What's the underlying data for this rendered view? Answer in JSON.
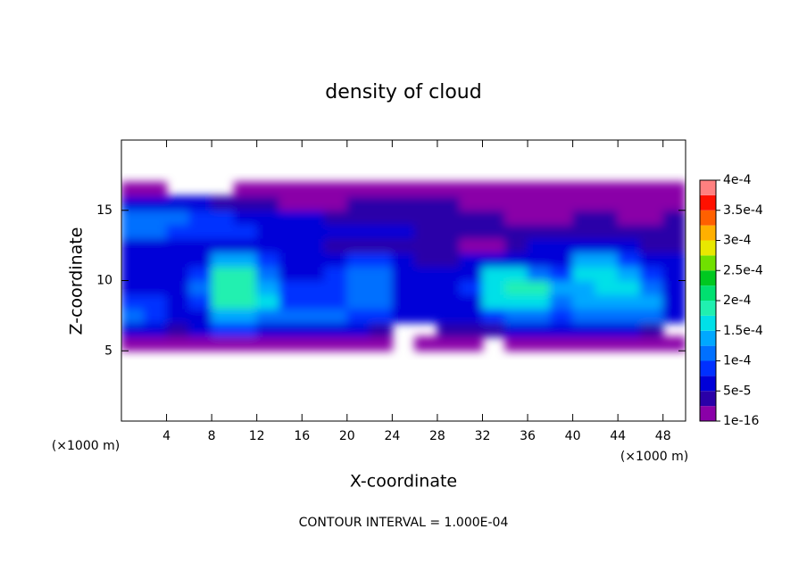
{
  "chart_data": {
    "type": "contourf",
    "title": "density of cloud",
    "xlabel": "X-coordinate",
    "ylabel": "Z-coordinate",
    "xunit": "(×1000 m)",
    "yunit": "(×1000 m)",
    "note": "CONTOUR INTERVAL = 1.000E-04",
    "xlim": [
      0,
      50
    ],
    "ylim": [
      0,
      20
    ],
    "xticks": [
      4,
      8,
      12,
      16,
      20,
      24,
      28,
      32,
      36,
      40,
      44,
      48
    ],
    "yticks": [
      5,
      10,
      15
    ],
    "x": [
      1,
      3,
      5,
      7,
      9,
      11,
      13,
      15,
      17,
      19,
      21,
      23,
      25,
      27,
      29,
      31,
      33,
      35,
      37,
      39,
      41,
      43,
      45,
      47,
      49
    ],
    "z": [
      5.5,
      6.5,
      7.5,
      8.5,
      9.5,
      10.5,
      11.5,
      12.5,
      13.5,
      14.5,
      15.5,
      16.5
    ],
    "values": [
      [
        2e-05,
        2e-05,
        2e-05,
        2e-05,
        2e-05,
        2e-05,
        2e-05,
        2e-05,
        2e-05,
        2e-05,
        1e-05,
        1e-05,
        null,
        1e-05,
        2e-05,
        1e-05,
        null,
        1e-05,
        2e-05,
        2e-05,
        2e-05,
        2e-05,
        2e-05,
        2e-05,
        1e-05
      ],
      [
        6e-05,
        6e-05,
        4e-05,
        6e-05,
        8e-05,
        8e-05,
        7e-05,
        7e-05,
        7e-05,
        7e-05,
        6e-05,
        4e-05,
        null,
        null,
        3e-05,
        3e-05,
        3e-05,
        5e-05,
        5e-05,
        6e-05,
        6e-05,
        6e-05,
        6e-05,
        4e-05,
        null
      ],
      [
        0.0001,
        9e-05,
        6e-05,
        7e-05,
        0.00013,
        0.00013,
        0.00011,
        0.00012,
        0.00012,
        0.00012,
        8e-05,
        8e-05,
        5e-05,
        5e-05,
        5e-05,
        6e-05,
        9e-05,
        0.00011,
        0.00011,
        8e-05,
        0.00012,
        0.00012,
        0.00012,
        0.00012,
        6e-05
      ],
      [
        8e-05,
        8e-05,
        7e-05,
        9e-05,
        0.00018,
        0.00018,
        0.00015,
        9e-05,
        9e-05,
        9e-05,
        0.0001,
        0.0001,
        6e-05,
        6e-05,
        5e-05,
        7e-05,
        0.00015,
        0.00017,
        0.00017,
        0.00011,
        0.00013,
        0.00013,
        0.00013,
        0.00013,
        7e-05
      ],
      [
        6e-05,
        6e-05,
        6e-05,
        0.00011,
        0.00019,
        0.00019,
        0.00014,
        8e-05,
        8e-05,
        8e-05,
        0.0001,
        0.0001,
        6e-05,
        6e-05,
        5e-05,
        8e-05,
        0.00016,
        0.00018,
        0.00018,
        0.00013,
        0.00013,
        0.00015,
        0.00015,
        0.00012,
        7e-05
      ],
      [
        5e-05,
        5e-05,
        5e-05,
        9e-05,
        0.00018,
        0.00018,
        0.00012,
        7e-05,
        7e-05,
        8e-05,
        0.0001,
        0.0001,
        6e-05,
        5e-05,
        5e-05,
        7e-05,
        0.00015,
        0.00015,
        0.00012,
        9e-05,
        0.00016,
        0.00016,
        0.00014,
        9e-05,
        6e-05
      ],
      [
        6e-05,
        6e-05,
        6e-05,
        7e-05,
        0.00013,
        0.00013,
        8e-05,
        6e-05,
        6e-05,
        7e-05,
        8e-05,
        8e-05,
        5e-05,
        4e-05,
        4e-05,
        5e-05,
        6e-05,
        6e-05,
        6e-05,
        7e-05,
        0.00014,
        0.00014,
        9e-05,
        6e-05,
        5e-05
      ],
      [
        7e-05,
        7e-05,
        7e-05,
        6e-05,
        6e-05,
        6e-05,
        5e-05,
        5e-05,
        5e-05,
        4e-05,
        3e-05,
        3e-05,
        3e-05,
        3e-05,
        3e-05,
        2e-05,
        2e-05,
        4e-05,
        5e-05,
        5e-05,
        5e-05,
        5e-05,
        5e-05,
        4e-05,
        4e-05
      ],
      [
        0.0001,
        0.0001,
        9e-05,
        9e-05,
        8e-05,
        8e-05,
        7e-05,
        7e-05,
        6e-05,
        5e-05,
        5e-05,
        5e-05,
        5e-05,
        4e-05,
        3e-05,
        3e-05,
        3e-05,
        3e-05,
        3e-05,
        3e-05,
        4e-05,
        4e-05,
        4e-05,
        3e-05,
        3e-05
      ],
      [
        0.0001,
        0.00011,
        0.0001,
        9e-05,
        8e-05,
        6e-05,
        6e-05,
        6e-05,
        5e-05,
        4e-05,
        4e-05,
        4e-05,
        4e-05,
        4e-05,
        3e-05,
        3e-05,
        3e-05,
        2e-05,
        2e-05,
        2e-05,
        3e-05,
        3e-05,
        2e-05,
        2e-05,
        3e-05
      ],
      [
        5e-05,
        5e-05,
        5e-05,
        5e-05,
        4e-05,
        3e-05,
        3e-05,
        2e-05,
        2e-05,
        2e-05,
        3e-05,
        3e-05,
        4e-05,
        4e-05,
        4e-05,
        2e-05,
        2e-05,
        2e-05,
        2e-05,
        2e-05,
        1e-05,
        1e-05,
        2e-05,
        2e-05,
        2e-05
      ],
      [
        1e-05,
        1e-05,
        null,
        null,
        null,
        1e-05,
        1e-05,
        1e-05,
        1e-05,
        1e-05,
        1e-05,
        1e-05,
        1e-05,
        1e-05,
        1e-05,
        1e-05,
        1e-05,
        1e-05,
        1e-05,
        1e-05,
        1e-05,
        1e-05,
        1e-05,
        1e-05,
        1e-05
      ]
    ],
    "colorbar": {
      "levels": [
        1e-16,
        2.5e-05,
        5e-05,
        7.5e-05,
        0.0001,
        0.000125,
        0.00015,
        0.000175,
        0.0002,
        0.000225,
        0.00025,
        0.000275,
        0.0003,
        0.000325,
        0.00035,
        0.000375,
        0.0004
      ],
      "colors": [
        "#8a00a8",
        "#2a00a8",
        "#0000d8",
        "#0030ff",
        "#0070ff",
        "#00a8ff",
        "#00e0e8",
        "#20f0b0",
        "#00e070",
        "#00c820",
        "#70e000",
        "#e8e800",
        "#ffb000",
        "#ff6000",
        "#ff1000",
        "#ff8080"
      ],
      "ticks": [
        {
          "value": 1e-16,
          "label": "1e-16"
        },
        {
          "value": 5e-05,
          "label": "5e-5"
        },
        {
          "value": 0.0001,
          "label": "1e-4"
        },
        {
          "value": 0.00015,
          "label": "1.5e-4"
        },
        {
          "value": 0.0002,
          "label": "2e-4"
        },
        {
          "value": 0.00025,
          "label": "2.5e-4"
        },
        {
          "value": 0.0003,
          "label": "3e-4"
        },
        {
          "value": 0.00035,
          "label": "3.5e-4"
        },
        {
          "value": 0.0004,
          "label": "4e-4"
        }
      ]
    }
  }
}
